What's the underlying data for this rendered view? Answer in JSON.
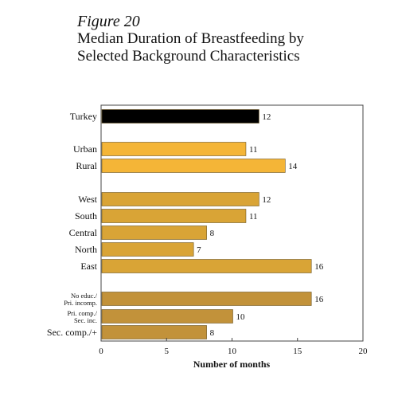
{
  "figure_label": "Figure 20",
  "title_lines": [
    "Median Duration of Breastfeeding by",
    "Selected Background Characteristics"
  ],
  "chart_data": {
    "type": "bar",
    "orientation": "horizontal",
    "title": "Median Duration of Breastfeeding by Selected Background Characteristics",
    "xlabel": "Number of months",
    "xlim": [
      0,
      20
    ],
    "xticks": [
      "0",
      "5",
      "10",
      "15",
      "20"
    ],
    "grid": false,
    "categories": [
      "Turkey",
      "Urban",
      "Rural",
      "West",
      "South",
      "Central",
      "North",
      "East",
      "No educ./ Pri. incomp.",
      "Pri. comp./ Sec. inc.",
      "Sec. comp./+"
    ],
    "category_lines": [
      [
        "Turkey"
      ],
      [
        "Urban"
      ],
      [
        "Rural"
      ],
      [
        "West"
      ],
      [
        "South"
      ],
      [
        "Central"
      ],
      [
        "North"
      ],
      [
        "East"
      ],
      [
        "No educ./",
        "Pri. incomp."
      ],
      [
        "Pri. comp./",
        "Sec. inc."
      ],
      [
        "Sec. comp./+"
      ]
    ],
    "values": [
      12,
      11,
      14,
      12,
      11,
      8,
      7,
      16,
      16,
      10,
      8
    ],
    "value_labels": [
      "12",
      "11",
      "14",
      "12",
      "11",
      "8",
      "7",
      "16",
      "16",
      "10",
      "8"
    ],
    "groups": [
      {
        "name": "",
        "categories": [
          "Turkey"
        ],
        "color": "#000000"
      },
      {
        "name": "",
        "categories": [
          "Urban",
          "Rural"
        ],
        "color": "#f4b537"
      },
      {
        "name": "",
        "categories": [
          "West",
          "South",
          "Central",
          "North",
          "East"
        ],
        "color": "#d9a436"
      },
      {
        "name": "",
        "categories": [
          "No educ./ Pri. incomp.",
          "Pri. comp./ Sec. inc.",
          "Sec. comp./+"
        ],
        "color": "#c2923a"
      }
    ]
  }
}
